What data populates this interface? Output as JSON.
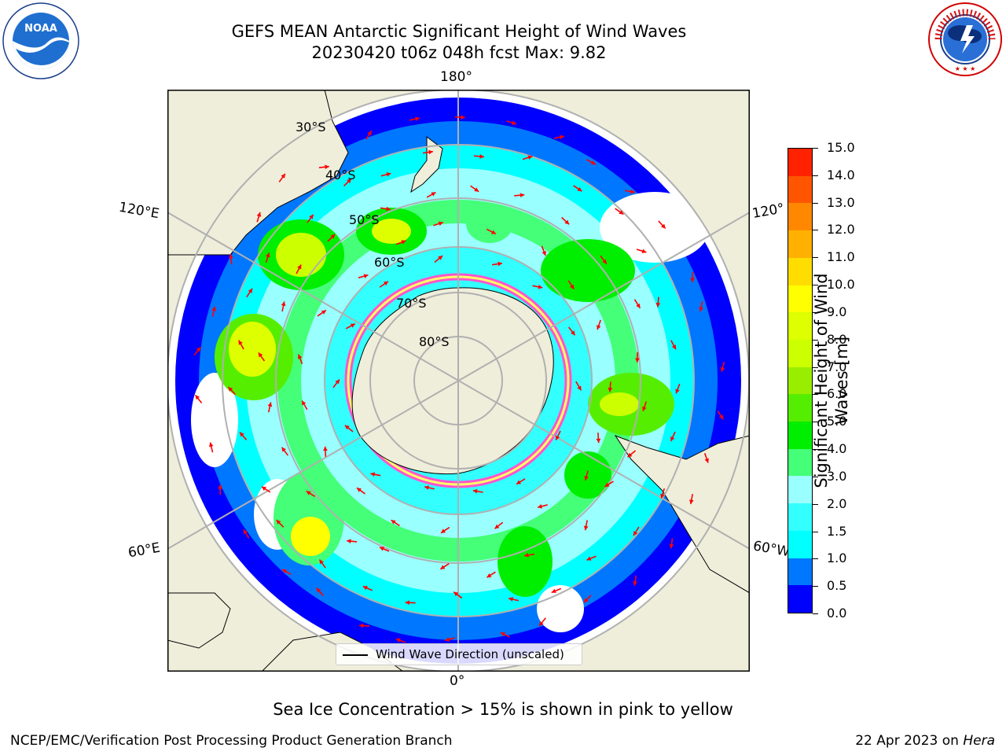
{
  "header": {
    "title_line1": "GEFS MEAN Antarctic Significant Height of Wind Waves",
    "title_line2": "20230420 t06z 048h fcst   Max: 9.82"
  },
  "logos": {
    "left": "noaa-logo",
    "right": "national-weather-service-logo",
    "left_text": "NOAA",
    "right_ring_text": "NATIONAL WEATHER SERVICE"
  },
  "map": {
    "projection": "south-polar-stereographic",
    "longitude_labels": {
      "top": "180°",
      "bottom": "0°",
      "left_upper": "120°E",
      "left_lower": "60°E",
      "right_upper": "120°",
      "right_lower": "60°W"
    },
    "latitude_labels": [
      "30°S",
      "40°S",
      "50°S",
      "60°S",
      "70°S",
      "80°S"
    ],
    "legend_label": "Wind Wave Direction (unscaled)",
    "colors": {
      "land": "#efeedb",
      "ocean_no_data": "#ffffff",
      "grid": "#b0b0b0",
      "arrow": "#ff0000",
      "ice_edge": "#ff55cc"
    }
  },
  "colorbar": {
    "title": "Significant Height of Wind Waves [m]",
    "tick_labels": [
      "0.0",
      "0.5",
      "1.0",
      "1.5",
      "2.0",
      "3.0",
      "4.0",
      "5.0",
      "6.0",
      "7.0",
      "8.0",
      "9.0",
      "10.0",
      "11.0",
      "12.0",
      "13.0",
      "14.0",
      "15.0"
    ],
    "colors": [
      "#0000ff",
      "#0077ff",
      "#00ffff",
      "#33ffff",
      "#99ffff",
      "#44ff77",
      "#00ee00",
      "#55ee00",
      "#99ee00",
      "#ccff00",
      "#ddff00",
      "#ffff00",
      "#ffdd00",
      "#ffb000",
      "#ff8800",
      "#ff5500",
      "#ff2200"
    ]
  },
  "footer": {
    "note": "Sea Ice Concentration > 15% is shown in pink to yellow",
    "credit_left": "NCEP/EMC/Verification Post Processing Product Generation Branch",
    "credit_right_date": "22 Apr 2023 on",
    "credit_right_machine": "Hera"
  }
}
